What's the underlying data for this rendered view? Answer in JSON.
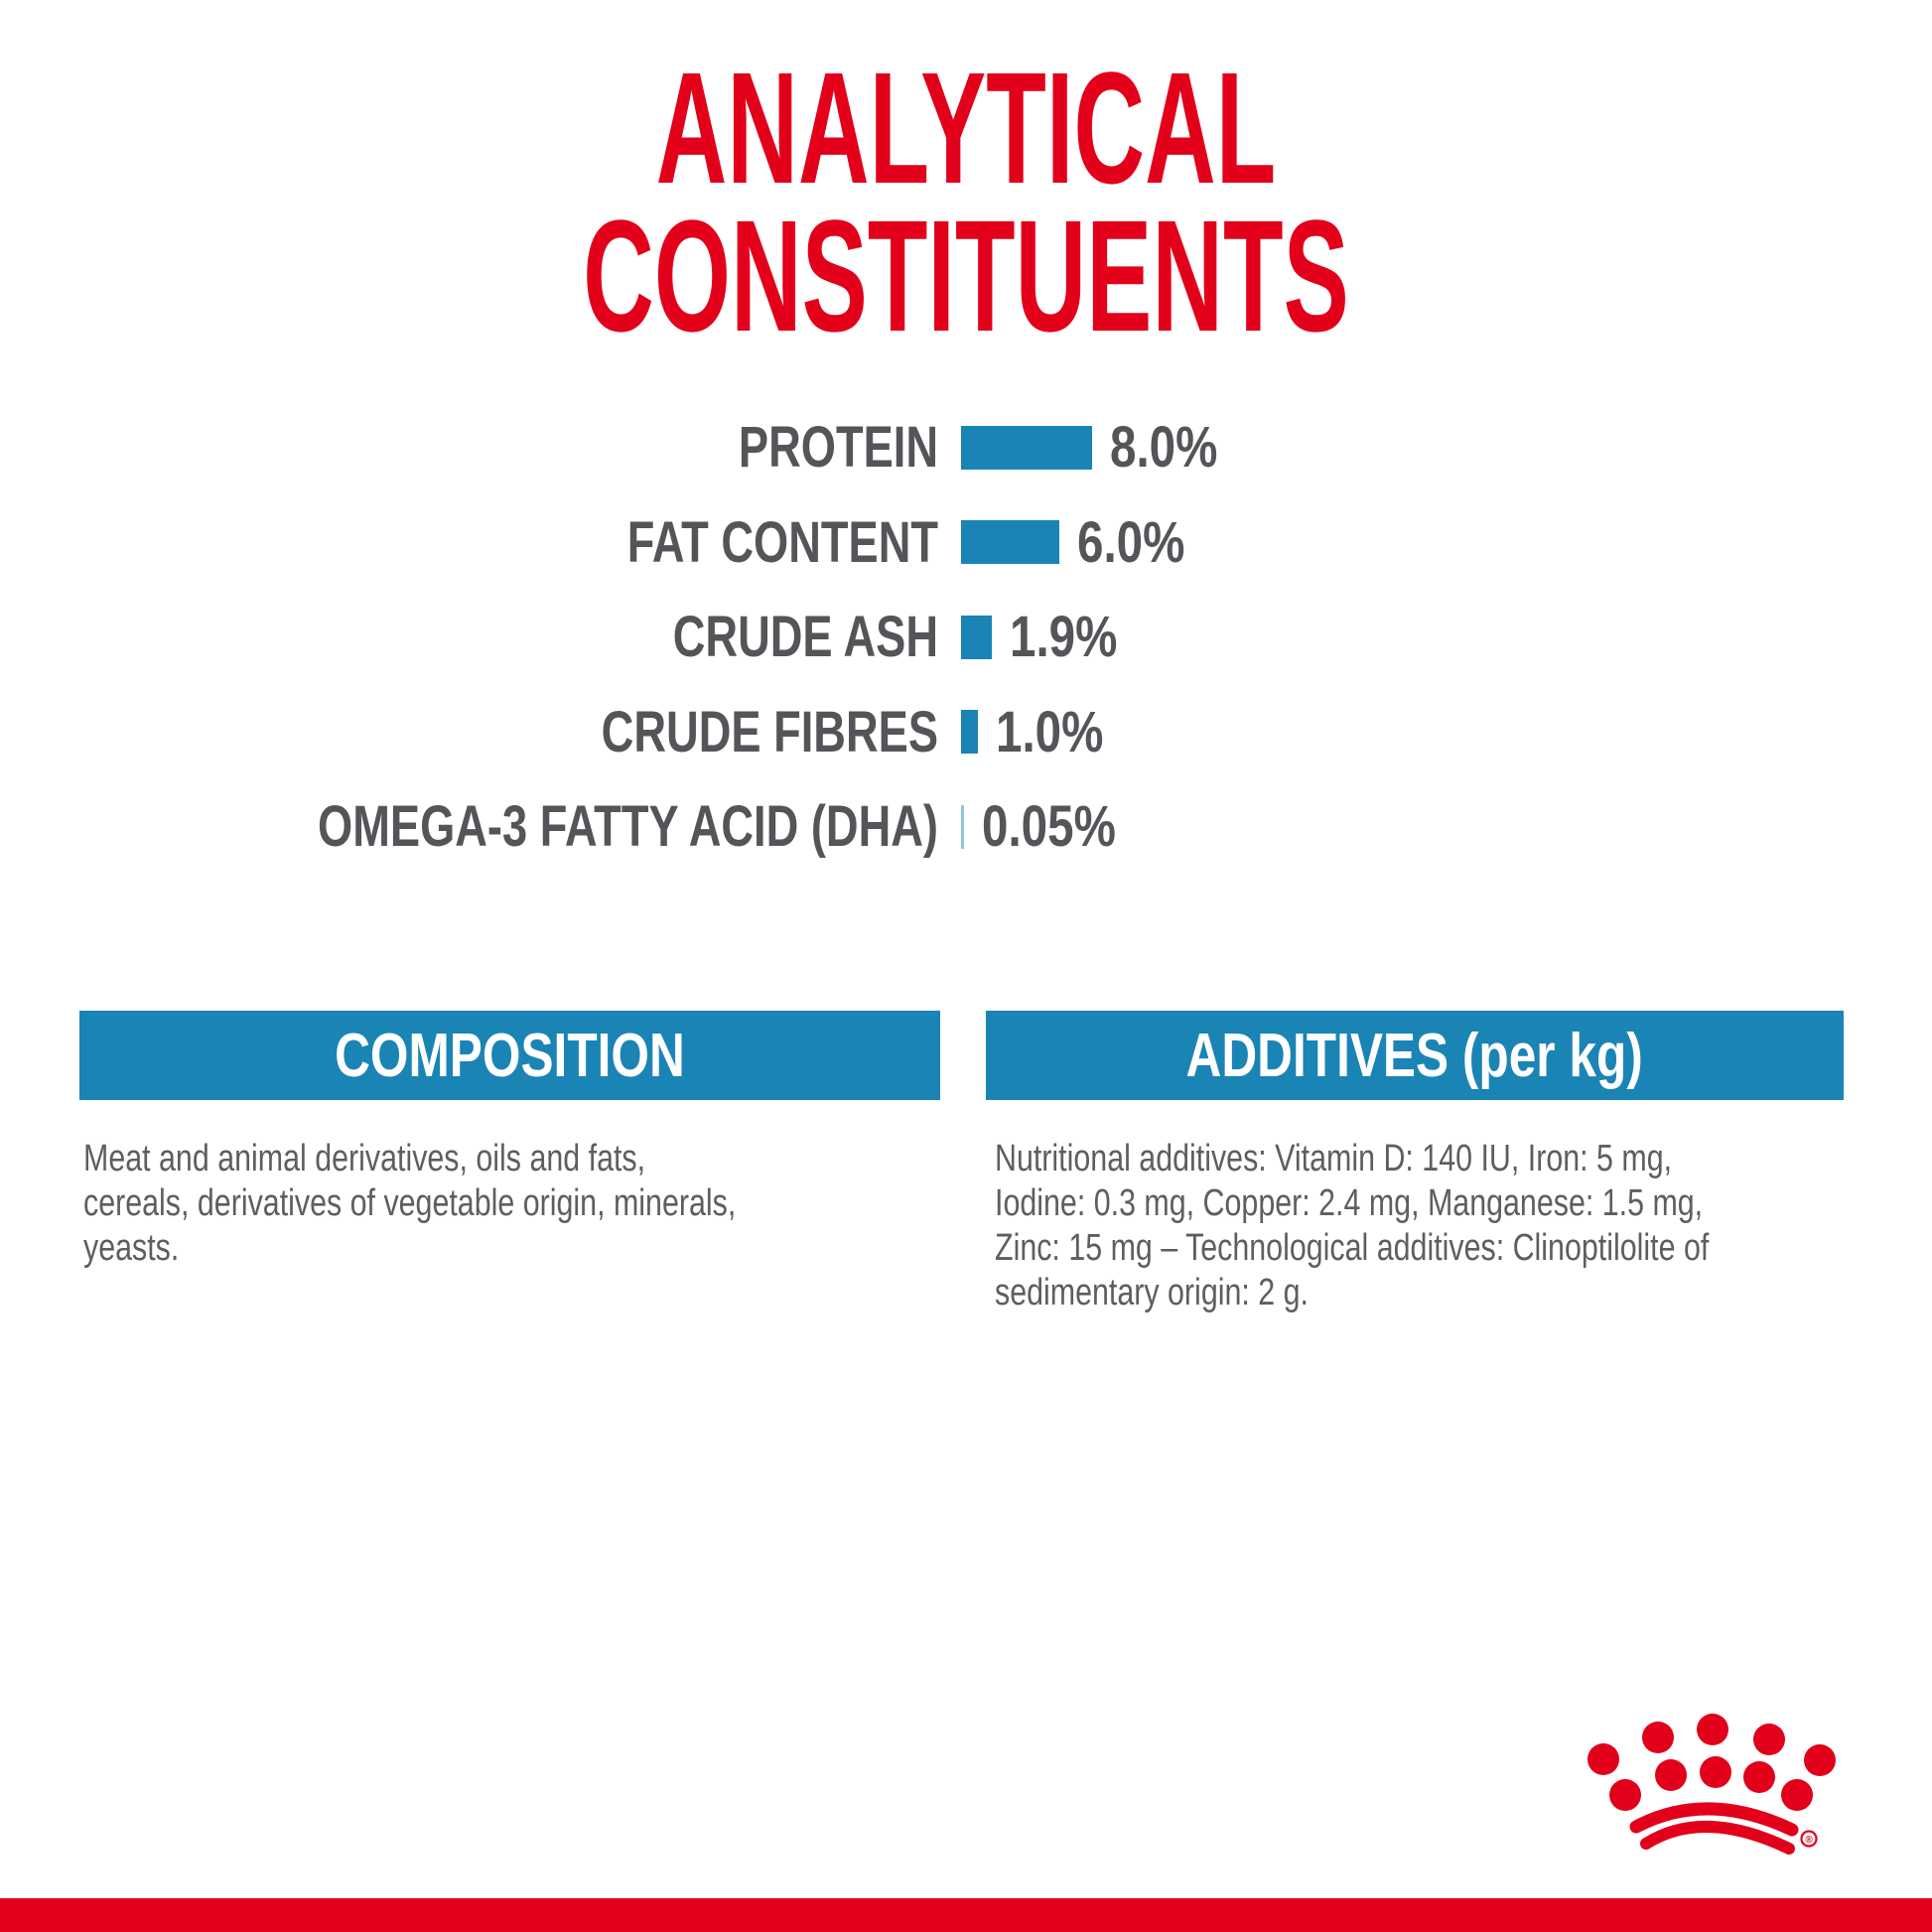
{
  "page": {
    "title_line1": "ANALYTICAL",
    "title_line2": "CONSTITUENTS"
  },
  "chart_data": {
    "type": "bar",
    "orientation": "horizontal",
    "title": "ANALYTICAL CONSTITUENTS",
    "unit": "%",
    "categories": [
      "PROTEIN",
      "FAT CONTENT",
      "CRUDE ASH",
      "CRUDE FIBRES",
      "OMEGA-3 FATTY ACID (DHA)"
    ],
    "values": [
      8.0,
      6.0,
      1.9,
      1.0,
      0.05
    ],
    "value_labels": [
      "8.0%",
      "6.0%",
      "1.9%",
      "1.0%",
      "0.05%"
    ],
    "bar_color": "#1a84b5",
    "xlim": [
      0,
      8.5
    ],
    "grid": false,
    "legend": false
  },
  "sections": {
    "composition": {
      "header": "COMPOSITION",
      "lines": [
        "Meat and animal derivatives, oils and fats,",
        "cereals, derivatives of vegetable origin, minerals,",
        "yeasts."
      ]
    },
    "additives": {
      "header": "ADDITIVES (per kg)",
      "lines": [
        "Nutritional additives: Vitamin D: 140 IU, Iron: 5 mg,",
        "Iodine: 0.3 mg, Copper: 2.4 mg, Manganese: 1.5 mg,",
        "Zinc: 15 mg – Technological additives: Clinoptilolite of",
        "sedimentary origin: 2 g."
      ]
    }
  },
  "branding": {
    "logo": "royal-canin-crown",
    "registered_mark": "®"
  },
  "colors": {
    "red": "#e2001a",
    "blue": "#1a84b5",
    "text_gray": "#545559"
  }
}
